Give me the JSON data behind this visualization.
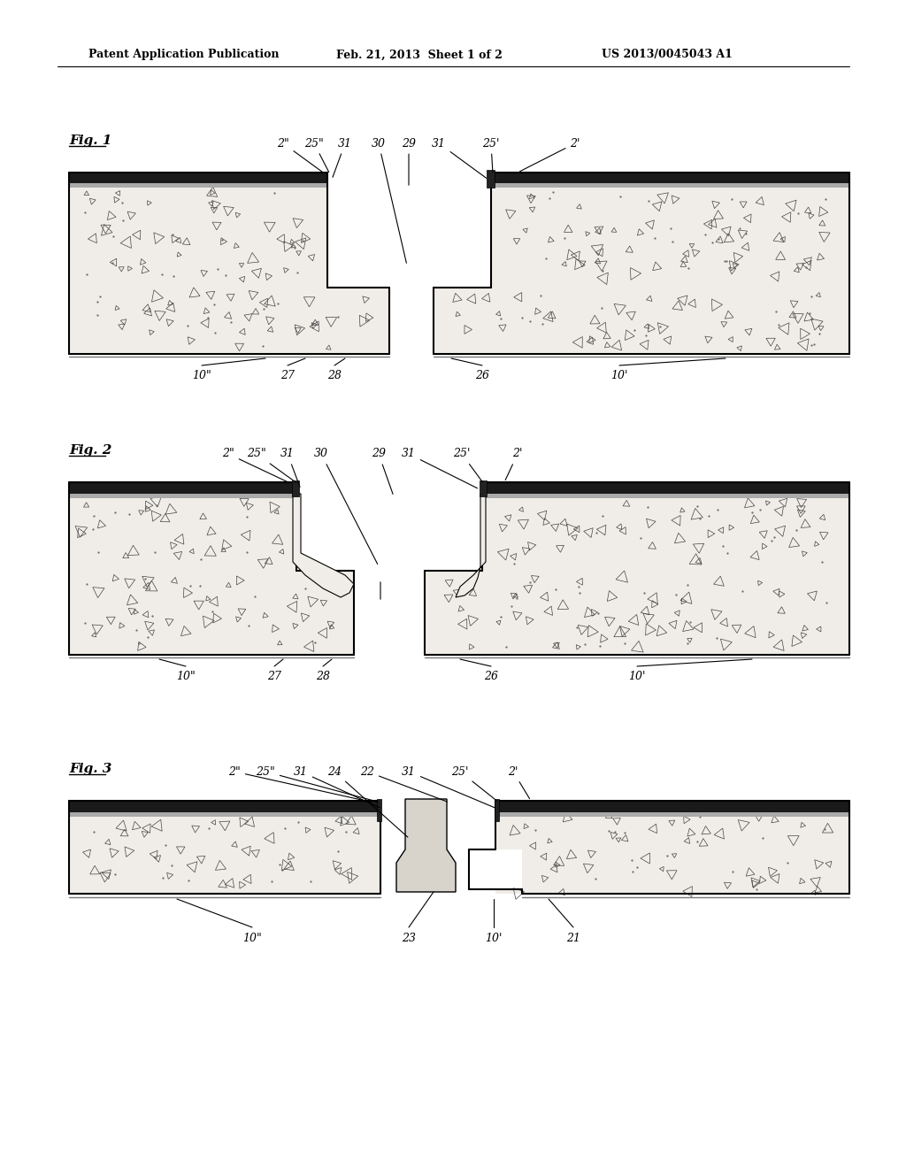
{
  "title_left": "Patent Application Publication",
  "title_mid": "Feb. 21, 2013  Sheet 1 of 2",
  "title_right": "US 2013/0045043 A1",
  "bg_color": "#ffffff",
  "concrete_fill": "#f0ede8",
  "road_fill": "#2a2a2a",
  "road_fill2": "#888888",
  "seal_fill": "#888888",
  "fig1_label": "Fig. 1",
  "fig2_label": "Fig. 2",
  "fig3_label": "Fig. 3"
}
